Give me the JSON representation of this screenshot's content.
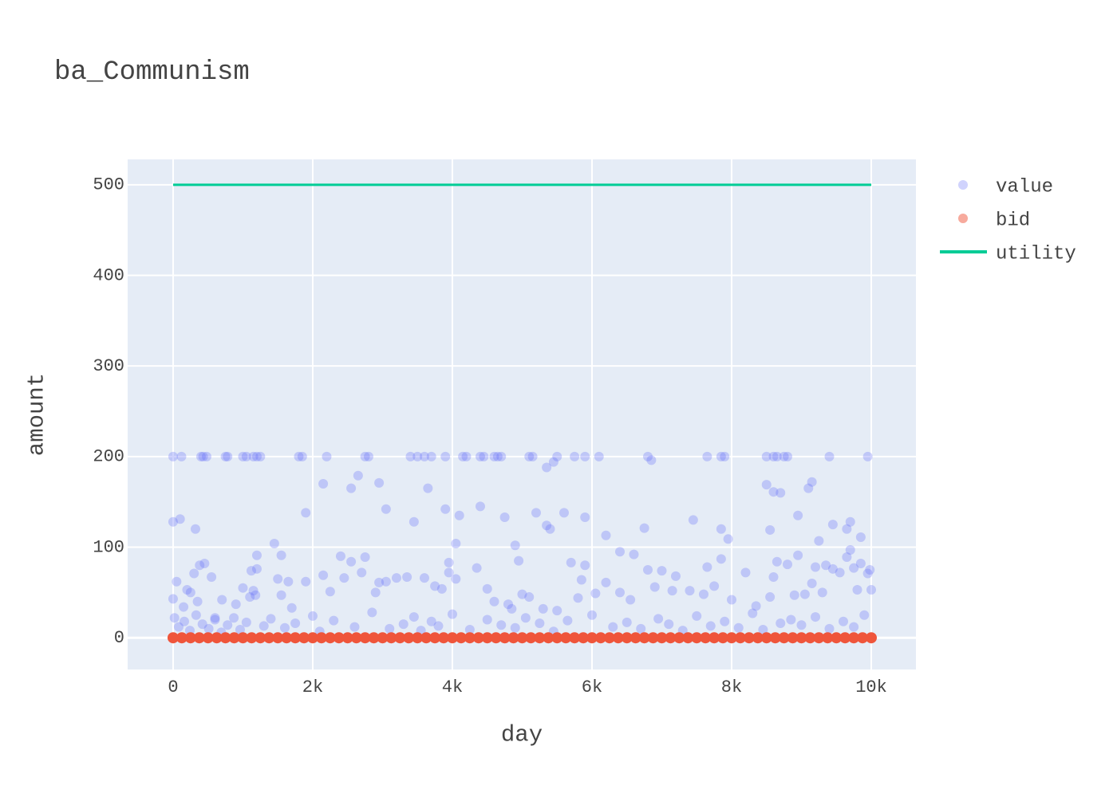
{
  "chart_data": {
    "type": "scatter",
    "title": "ba_Communism",
    "x_label": "day",
    "y_label": "amount",
    "xlim": [
      -651,
      10640
    ],
    "ylim": [
      -35,
      528
    ],
    "xticks": [
      0,
      {
        "value": 2000,
        "label": "2k"
      },
      {
        "value": 4000,
        "label": "4k"
      },
      {
        "value": 6000,
        "label": "6k"
      },
      {
        "value": 8000,
        "label": "8k"
      },
      {
        "value": 10000,
        "label": "10k"
      }
    ],
    "yticks": [
      0,
      100,
      200,
      300,
      400,
      500
    ],
    "grid": true,
    "legend": "right",
    "series": [
      {
        "name": "value",
        "mode": "markers",
        "color": "#636efa",
        "x": [
          0,
          120,
          400,
          430,
          480,
          750,
          780,
          1000,
          1050,
          1150,
          1200,
          1250,
          1800,
          1850,
          2200,
          2750,
          2800,
          3400,
          3500,
          3600,
          3700,
          3900,
          4150,
          4200,
          4400,
          4450,
          4600,
          4650,
          4700,
          5100,
          5150,
          5500,
          5750,
          5900,
          6100,
          6800,
          7650,
          7850,
          7900,
          8500,
          8600,
          8650,
          8750,
          8800,
          9400,
          9950,
          0,
          100,
          320,
          1450,
          1550,
          1200,
          1900,
          2150,
          2550,
          2650,
          2950,
          3050,
          3450,
          3650,
          3900,
          4050,
          4100,
          4400,
          4750,
          4900,
          5200,
          5350,
          5400,
          5350,
          5450,
          5600,
          5900,
          6200,
          6400,
          6600,
          6750,
          6850,
          7450,
          7850,
          7950,
          8500,
          8550,
          8600,
          8700,
          8950,
          9100,
          9150,
          9250,
          9450,
          9700,
          9650,
          9850,
          9700,
          9850,
          0,
          20,
          50,
          150,
          200,
          250,
          300,
          350,
          380,
          450,
          550,
          600,
          700,
          900,
          1000,
          1100,
          1150,
          1180,
          1120,
          1200,
          1500,
          1550,
          1650,
          1700,
          1900,
          2150,
          2250,
          2400,
          2450,
          2550,
          2700,
          2750,
          2900,
          2950,
          3050,
          3200,
          3350,
          3600,
          3750,
          3850,
          3950,
          3950,
          4050,
          4350,
          4500,
          4600,
          4800,
          4850,
          4950,
          5000,
          5100,
          5300,
          5500,
          5700,
          5800,
          5850,
          5900,
          6050,
          6200,
          6400,
          6550,
          6800,
          6900,
          7000,
          7150,
          7200,
          7400,
          7600,
          7650,
          7750,
          7850,
          8000,
          8200,
          8350,
          8550,
          8600,
          8650,
          8800,
          8900,
          8950,
          9050,
          9150,
          9200,
          9300,
          9350,
          9450,
          9550,
          9650,
          9750,
          9800,
          9950,
          10000,
          9980,
          80,
          160,
          240,
          330,
          420,
          510,
          600,
          690,
          780,
          870,
          960,
          1050,
          1300,
          1400,
          1600,
          1750,
          2000,
          2100,
          2300,
          2600,
          2850,
          3100,
          3300,
          3450,
          3550,
          3700,
          3800,
          4000,
          4250,
          4500,
          4700,
          4900,
          5050,
          5250,
          5450,
          5650,
          6000,
          6300,
          6500,
          6700,
          6950,
          7100,
          7300,
          7500,
          7700,
          7900,
          8100,
          8300,
          8450,
          8700,
          8850,
          9000,
          9200,
          9400,
          9600,
          9750,
          9900
        ],
        "values": [
          200,
          200,
          200,
          200,
          200,
          200,
          200,
          200,
          200,
          200,
          200,
          200,
          200,
          200,
          200,
          200,
          200,
          200,
          200,
          200,
          200,
          200,
          200,
          200,
          200,
          200,
          200,
          200,
          200,
          200,
          200,
          200,
          200,
          200,
          200,
          200,
          200,
          200,
          200,
          200,
          200,
          200,
          200,
          200,
          200,
          200,
          128,
          131,
          120,
          104,
          91,
          91,
          138,
          170,
          165,
          179,
          171,
          142,
          128,
          165,
          142,
          104,
          135,
          145,
          133,
          102,
          138,
          124,
          120,
          188,
          194,
          138,
          133,
          113,
          95,
          92,
          121,
          196,
          130,
          120,
          109,
          169,
          119,
          161,
          160,
          135,
          165,
          172,
          107,
          125,
          128,
          120,
          111,
          97,
          82,
          43,
          22,
          62,
          34,
          53,
          50,
          71,
          40,
          80,
          82,
          67,
          22,
          42,
          37,
          55,
          45,
          52,
          47,
          74,
          76,
          65,
          47,
          62,
          33,
          62,
          69,
          51,
          90,
          66,
          84,
          72,
          89,
          50,
          61,
          62,
          66,
          67,
          66,
          57,
          54,
          72,
          83,
          65,
          77,
          54,
          40,
          37,
          32,
          85,
          48,
          45,
          32,
          30,
          83,
          44,
          64,
          80,
          49,
          61,
          50,
          42,
          75,
          56,
          74,
          52,
          68,
          52,
          48,
          78,
          57,
          87,
          42,
          72,
          35,
          45,
          67,
          84,
          81,
          47,
          91,
          48,
          60,
          78,
          50,
          80,
          76,
          72,
          89,
          77,
          53,
          71,
          53,
          75,
          12,
          18,
          8,
          25,
          15,
          10,
          20,
          6,
          14,
          22,
          9,
          17,
          13,
          21,
          11,
          16,
          24,
          7,
          19,
          12,
          28,
          10,
          15,
          23,
          8,
          18,
          13,
          26,
          9,
          20,
          14,
          11,
          22,
          16,
          7,
          19,
          25,
          12,
          17,
          10,
          21,
          15,
          8,
          24,
          13,
          18,
          11,
          27,
          9,
          16,
          20,
          14,
          23,
          10,
          18,
          12,
          25
        ]
      },
      {
        "name": "bid",
        "mode": "markers",
        "color": "#ef553b",
        "x": [
          0,
          125,
          250,
          375,
          500,
          625,
          750,
          875,
          1000,
          1125,
          1250,
          1375,
          1500,
          1625,
          1750,
          1875,
          2000,
          2125,
          2250,
          2375,
          2500,
          2625,
          2750,
          2875,
          3000,
          3125,
          3250,
          3375,
          3500,
          3625,
          3750,
          3875,
          4000,
          4125,
          4250,
          4375,
          4500,
          4625,
          4750,
          4875,
          5000,
          5125,
          5250,
          5375,
          5500,
          5625,
          5750,
          5875,
          6000,
          6125,
          6250,
          6375,
          6500,
          6625,
          6750,
          6875,
          7000,
          7125,
          7250,
          7375,
          7500,
          7625,
          7750,
          7875,
          8000,
          8125,
          8250,
          8375,
          8500,
          8625,
          8750,
          8875,
          9000,
          9125,
          9250,
          9375,
          9500,
          9625,
          9750,
          9875,
          10000
        ],
        "values": [
          0,
          0,
          0,
          0,
          0,
          0,
          0,
          0,
          0,
          0,
          0,
          0,
          0,
          0,
          0,
          0,
          0,
          0,
          0,
          0,
          0,
          0,
          0,
          0,
          0,
          0,
          0,
          0,
          0,
          0,
          0,
          0,
          0,
          0,
          0,
          0,
          0,
          0,
          0,
          0,
          0,
          0,
          0,
          0,
          0,
          0,
          0,
          0,
          0,
          0,
          0,
          0,
          0,
          0,
          0,
          0,
          0,
          0,
          0,
          0,
          0,
          0,
          0,
          0,
          0,
          0,
          0,
          0,
          0,
          0,
          0,
          0,
          0,
          0,
          0,
          0,
          0,
          0,
          0,
          0,
          0
        ]
      },
      {
        "name": "utility",
        "mode": "lines",
        "color": "#00cc96",
        "x": [
          0,
          10000
        ],
        "values": [
          500,
          500
        ]
      }
    ]
  }
}
